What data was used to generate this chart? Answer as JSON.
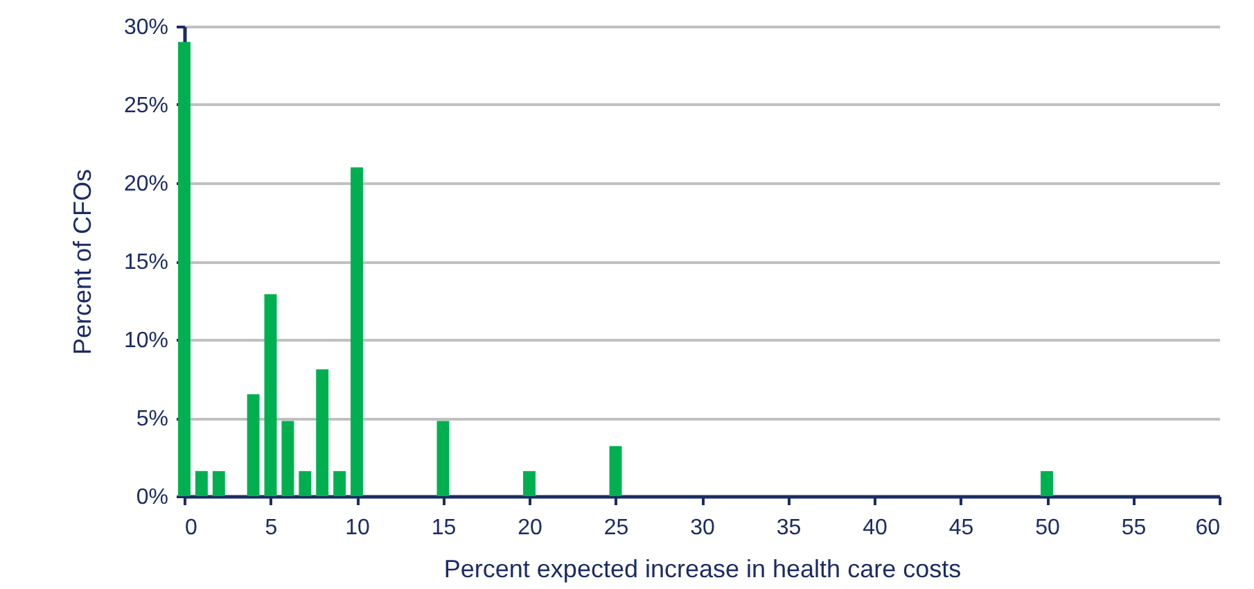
{
  "chart_data": {
    "type": "bar",
    "xlabel": "Percent expected increase in health care costs",
    "ylabel": "Percent of CFOs",
    "x": [
      0,
      1,
      2,
      4,
      5,
      6,
      7,
      8,
      9,
      10,
      15,
      20,
      25,
      50
    ],
    "values": [
      29.0,
      1.6,
      1.6,
      6.5,
      12.9,
      4.8,
      1.6,
      8.1,
      1.6,
      21.0,
      4.8,
      1.6,
      3.2,
      1.6
    ],
    "color": "#00b050",
    "xlim": [
      0,
      60
    ],
    "xticks": [
      0,
      5,
      10,
      15,
      20,
      25,
      30,
      35,
      40,
      45,
      50,
      55,
      60
    ],
    "ylim": [
      0,
      30
    ],
    "yticks": [
      {
        "value": 0,
        "label": "0%"
      },
      {
        "value": 5,
        "label": "5%"
      },
      {
        "value": 10,
        "label": "10%"
      },
      {
        "value": 15,
        "label": "15%"
      },
      {
        "value": 20,
        "label": "20%"
      },
      {
        "value": 25,
        "label": "25%"
      },
      {
        "value": 30,
        "label": "30%"
      }
    ],
    "grid": "y"
  }
}
